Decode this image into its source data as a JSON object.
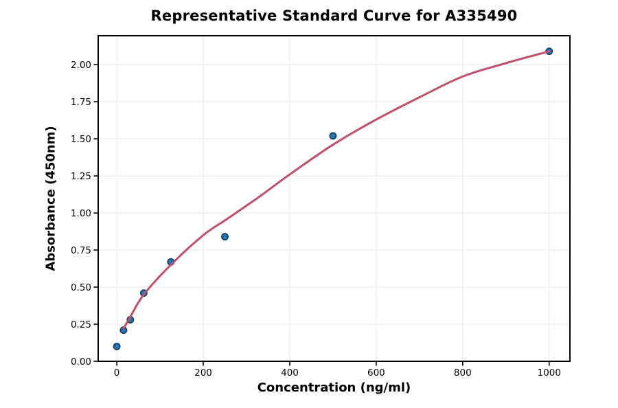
{
  "chart_data": {
    "type": "scatter",
    "title": "Representative Standard Curve for A335490",
    "xlabel": "Concentration (ng/ml)",
    "ylabel": "Absorbance (450nm)",
    "xlim": [
      -43,
      1048
    ],
    "ylim": [
      0,
      2.195
    ],
    "grid": true,
    "legend": false,
    "x_ticks": [
      {
        "value": 0,
        "label": "0"
      },
      {
        "value": 200,
        "label": "200"
      },
      {
        "value": 400,
        "label": "400"
      },
      {
        "value": 600,
        "label": "600"
      },
      {
        "value": 800,
        "label": "800"
      },
      {
        "value": 1000,
        "label": "1000"
      }
    ],
    "y_ticks": [
      {
        "value": 0,
        "label": "0.00"
      },
      {
        "value": 0.25,
        "label": "0.25"
      },
      {
        "value": 0.5,
        "label": "0.50"
      },
      {
        "value": 0.75,
        "label": "0.75"
      },
      {
        "value": 1,
        "label": "1.00"
      },
      {
        "value": 1.25,
        "label": "1.25"
      },
      {
        "value": 1.5,
        "label": "1.50"
      },
      {
        "value": 1.75,
        "label": "1.75"
      },
      {
        "value": 2,
        "label": "2.00"
      }
    ],
    "series": [
      {
        "name": "standard-points",
        "type": "scatter",
        "points": [
          [
            0,
            0.1
          ],
          [
            15.625,
            0.21
          ],
          [
            31.25,
            0.28
          ],
          [
            62.5,
            0.46
          ],
          [
            125,
            0.67
          ],
          [
            250,
            0.84
          ],
          [
            500,
            1.52
          ],
          [
            1000,
            2.09
          ]
        ],
        "marker_fill": "#1f77b4",
        "marker_edge": "#173f5f"
      },
      {
        "name": "fit-curve",
        "type": "line",
        "points": [
          [
            15.6,
            0.22
          ],
          [
            31.25,
            0.3
          ],
          [
            62.5,
            0.45
          ],
          [
            125,
            0.65
          ],
          [
            200,
            0.85
          ],
          [
            250,
            0.95
          ],
          [
            325,
            1.1
          ],
          [
            400,
            1.26
          ],
          [
            500,
            1.46
          ],
          [
            600,
            1.63
          ],
          [
            700,
            1.78
          ],
          [
            800,
            1.92
          ],
          [
            900,
            2.01
          ],
          [
            1000,
            2.09
          ]
        ],
        "color": "#c0506a"
      }
    ],
    "colors": {
      "grid": "#e8e8e8",
      "spine": "#000000",
      "tick": "#000000",
      "tick_label": "#000000",
      "background": "#ffffff"
    }
  }
}
